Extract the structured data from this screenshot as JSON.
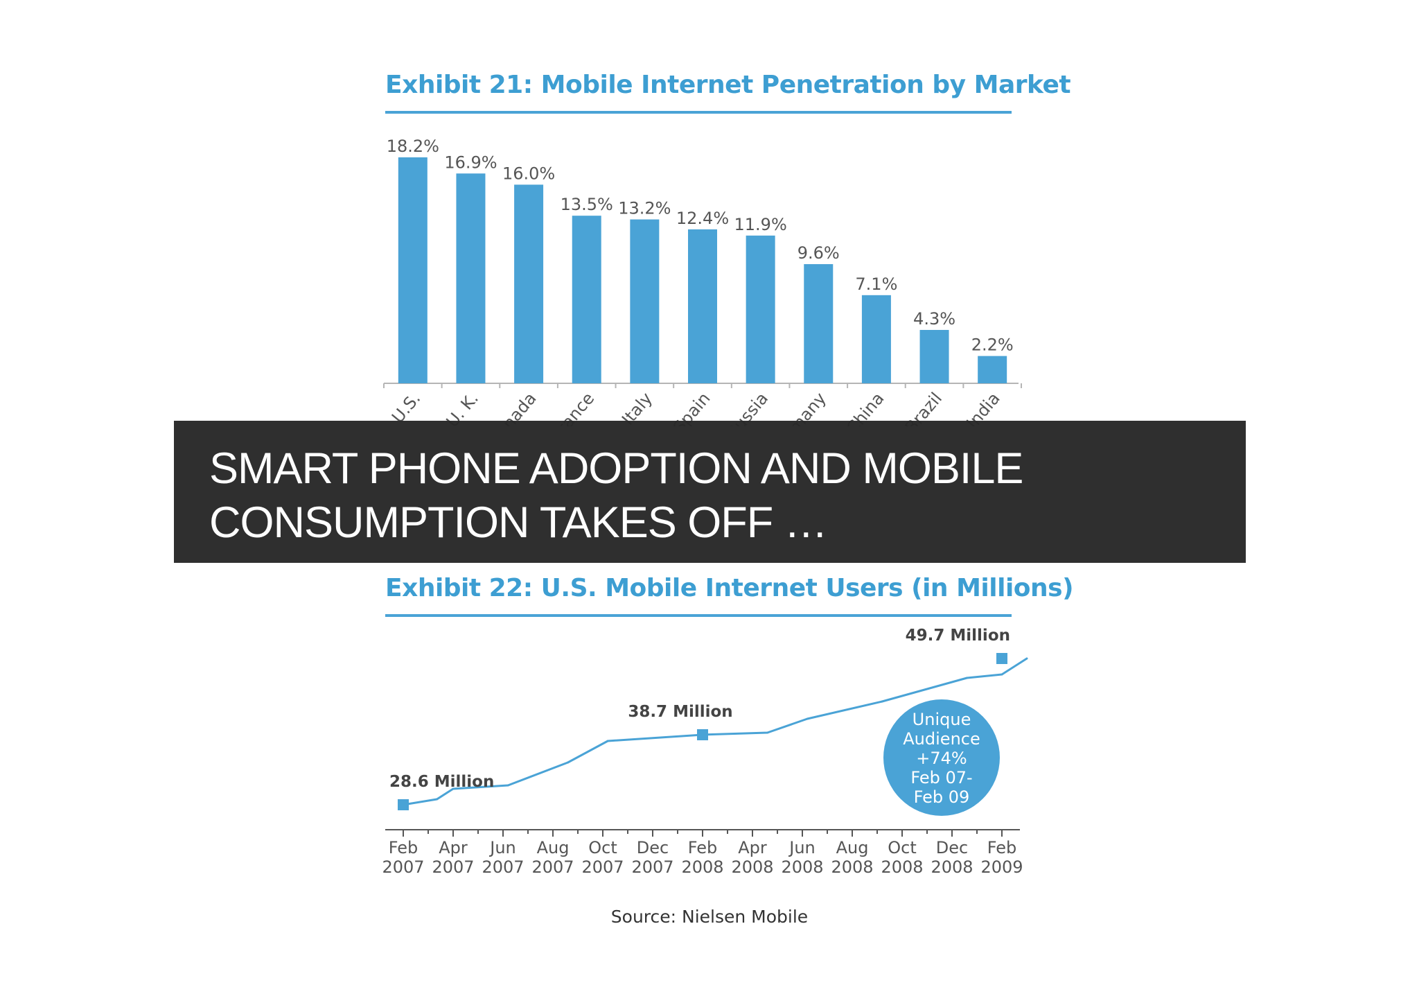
{
  "caption": "SMART PHONE ADOPTION AND MOBILE CONSUMPTION TAKES OFF …",
  "colors": {
    "accent": "#3d9ed2",
    "bar": "#4aa3d6",
    "overlay": "#282828"
  },
  "chart_data": [
    {
      "type": "bar",
      "title": "Exhibit 21: Mobile Internet Penetration by Market",
      "categories": [
        "U.S.",
        "U. K.",
        "Canada",
        "France",
        "Italy",
        "Spain",
        "Russia",
        "Germany",
        "China",
        "Brazil",
        "India"
      ],
      "values": [
        18.2,
        16.9,
        16.0,
        13.5,
        13.2,
        12.4,
        11.9,
        9.6,
        7.1,
        4.3,
        2.2
      ],
      "value_labels": [
        "18.2%",
        "16.9%",
        "16.0%",
        "13.5%",
        "13.2%",
        "12.4%",
        "11.9%",
        "9.6%",
        "7.1%",
        "4.3%",
        "2.2%"
      ],
      "ylim": [
        0,
        18.2
      ],
      "xlabel": "",
      "ylabel": ""
    },
    {
      "type": "line",
      "title": "Exhibit 22: U.S. Mobile Internet Users (in Millions)",
      "x_ticks": [
        {
          "month": "Feb",
          "year": "2007"
        },
        {
          "month": "Apr",
          "year": "2007"
        },
        {
          "month": "Jun",
          "year": "2007"
        },
        {
          "month": "Aug",
          "year": "2007"
        },
        {
          "month": "Oct",
          "year": "2007"
        },
        {
          "month": "Dec",
          "year": "2007"
        },
        {
          "month": "Feb",
          "year": "2008"
        },
        {
          "month": "Apr",
          "year": "2008"
        },
        {
          "month": "Jun",
          "year": "2008"
        },
        {
          "month": "Aug",
          "year": "2008"
        },
        {
          "month": "Oct",
          "year": "2008"
        },
        {
          "month": "Dec",
          "year": "2008"
        },
        {
          "month": "Feb",
          "year": "2009"
        }
      ],
      "series": [
        {
          "name": "U.S. Mobile Internet Users",
          "x": [
            0,
            1.35,
            2,
            4.2,
            6.6,
            8.2,
            12,
            14.6,
            16.2,
            19.2,
            22.6,
            24,
            25
          ],
          "values": [
            28.6,
            29.4,
            30.9,
            31.4,
            34.7,
            37.8,
            38.7,
            39.0,
            41.0,
            43.5,
            46.9,
            47.4,
            49.7
          ]
        }
      ],
      "ylim": [
        25,
        52
      ],
      "annotations": [
        {
          "label": "28.6 Million",
          "x": 0,
          "value": 28.6
        },
        {
          "label": "38.7 Million",
          "x": 12,
          "value": 38.7
        },
        {
          "label": "49.7 Million",
          "x": 24,
          "value": 49.7
        }
      ],
      "callout": [
        "Unique",
        "Audience",
        "+74%",
        "Feb 07-",
        "Feb 09"
      ],
      "source": "Source: Nielsen Mobile"
    }
  ]
}
